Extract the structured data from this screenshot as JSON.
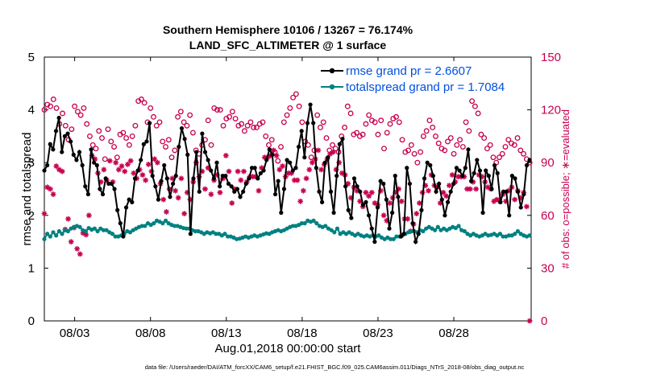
{
  "chart_data": {
    "type": "line",
    "title": "Southern Hemisphere 10106 / 13267 = 76.174%",
    "subtitle": "LAND_SFC_ALTIMETER @ 1 surface",
    "xlabel": "Aug.01,2018 00:00:00 start",
    "ylabel": "rmse and totalspread",
    "y2label": "# of obs: o=possible; ∗=evaluated",
    "footnote": "data file: /Users/raeder/DAI/ATM_forcXX/CAM6_setup/f.e21.FHIST_BGC.f09_025.CAM6assim.011/Diags_NTrS_2018-08/obs_diag_output.nc",
    "xlim": [
      1,
      33.1
    ],
    "ylim": [
      0,
      5
    ],
    "y2lim": [
      0,
      150
    ],
    "xticks": [
      3,
      8,
      13,
      18,
      23,
      28
    ],
    "xtick_labels": [
      "08/03",
      "08/08",
      "08/13",
      "08/18",
      "08/23",
      "08/28"
    ],
    "yticks": [
      0,
      1,
      2,
      3,
      4,
      5
    ],
    "y2ticks": [
      0,
      30,
      60,
      90,
      120,
      150
    ],
    "grid": false,
    "legend_position": "top-right",
    "series": [
      {
        "name": "rmse",
        "legend": "rmse grand pr = 2.6607",
        "color": "#000000",
        "axis": "left",
        "y": [
          2.85,
          2.95,
          3.35,
          3.25,
          3.6,
          3.85,
          3.2,
          3.5,
          3.55,
          3.4,
          3.15,
          3.05,
          3.2,
          2.95,
          2.55,
          2.4,
          3.25,
          3.0,
          2.95,
          2.5,
          2.4,
          2.7,
          2.6,
          2.6,
          2.5,
          2.1,
          1.85,
          1.6,
          2.15,
          2.3,
          2.25,
          2.7,
          2.85,
          3.05,
          3.35,
          3.4,
          3.75,
          2.75,
          2.55,
          2.3,
          2.65,
          2.95,
          2.7,
          2.35,
          2.6,
          2.75,
          3.3,
          3.65,
          3.45,
          3.15,
          1.65,
          2.7,
          3.2,
          2.45,
          3.55,
          3.2,
          3.05,
          2.85,
          2.7,
          3.0,
          2.55,
          2.75,
          2.75,
          2.6,
          2.55,
          2.45,
          2.5,
          2.35,
          2.45,
          2.6,
          2.7,
          2.9,
          2.9,
          2.7,
          2.8,
          2.85,
          3.05,
          3.25,
          3.15,
          2.4,
          2.65,
          2.05,
          2.5,
          3.05,
          3.0,
          2.85,
          2.9,
          3.3,
          3.6,
          3.1,
          3.75,
          4.1,
          3.75,
          2.9,
          2.45,
          2.25,
          3.0,
          3.1,
          2.45,
          2.05,
          2.75,
          3.35,
          3.45,
          2.55,
          2.1,
          1.95,
          2.7,
          2.55,
          2.45,
          2.2,
          2.25,
          2.0,
          1.75,
          1.5,
          2.15,
          2.65,
          2.6,
          2.3,
          1.75,
          2.05,
          2.75,
          2.35,
          1.6,
          1.65,
          2.9,
          2.6,
          1.85,
          1.5,
          1.65,
          2.1,
          2.7,
          3.0,
          2.95,
          2.75,
          2.45,
          2.6,
          2.3,
          2.0,
          2.25,
          2.45,
          2.6,
          2.9,
          2.85,
          2.75,
          2.9,
          3.25,
          2.65,
          2.8,
          3.05,
          2.85,
          2.05,
          2.85,
          2.75,
          2.5,
          2.95,
          2.8,
          2.25,
          2.45,
          2.45,
          2.0,
          2.75,
          2.7,
          2.45,
          2.15,
          2.4,
          2.95,
          3.05
        ],
        "marker": "filled-circle"
      },
      {
        "name": "totalspread",
        "legend": "totalspread grand pr = 1.7084",
        "color": "#008080",
        "axis": "left",
        "y": [
          1.55,
          1.65,
          1.6,
          1.68,
          1.62,
          1.7,
          1.65,
          1.72,
          1.7,
          1.75,
          1.78,
          1.8,
          1.78,
          1.72,
          1.7,
          1.76,
          1.73,
          1.75,
          1.7,
          1.75,
          1.72,
          1.72,
          1.68,
          1.65,
          1.6,
          1.6,
          1.62,
          1.65,
          1.7,
          1.68,
          1.72,
          1.75,
          1.78,
          1.8,
          1.8,
          1.85,
          1.82,
          1.85,
          1.9,
          1.88,
          1.85,
          1.9,
          1.85,
          1.82,
          1.8,
          1.8,
          1.78,
          1.76,
          1.75,
          1.75,
          1.72,
          1.7,
          1.7,
          1.68,
          1.65,
          1.68,
          1.66,
          1.68,
          1.65,
          1.65,
          1.62,
          1.65,
          1.6,
          1.6,
          1.58,
          1.55,
          1.56,
          1.58,
          1.6,
          1.58,
          1.6,
          1.62,
          1.6,
          1.62,
          1.64,
          1.66,
          1.65,
          1.68,
          1.7,
          1.72,
          1.7,
          1.72,
          1.75,
          1.78,
          1.8,
          1.8,
          1.82,
          1.85,
          1.85,
          1.9,
          1.88,
          1.9,
          1.85,
          1.8,
          1.78,
          1.8,
          1.75,
          1.72,
          1.68,
          1.75,
          1.65,
          1.68,
          1.65,
          1.68,
          1.65,
          1.62,
          1.65,
          1.62,
          1.6,
          1.62,
          1.6,
          1.62,
          1.6,
          1.62,
          1.58,
          1.55,
          1.58,
          1.55,
          1.55,
          1.6,
          1.6,
          1.62,
          1.65,
          1.68,
          1.7,
          1.7,
          1.68,
          1.72,
          1.7,
          1.75,
          1.78,
          1.75,
          1.72,
          1.78,
          1.72,
          1.75,
          1.72,
          1.75,
          1.78,
          1.76,
          1.8,
          1.72,
          1.7,
          1.65,
          1.62,
          1.65,
          1.62,
          1.6,
          1.62,
          1.65,
          1.62,
          1.63,
          1.65,
          1.62,
          1.65,
          1.6,
          1.6,
          1.62,
          1.62,
          1.65,
          1.7,
          1.65,
          1.62,
          1.6,
          1.62
        ],
        "marker": "filled-circle"
      },
      {
        "name": "obs possible",
        "color": "#c8004f",
        "axis": "right",
        "marker": "open-circle",
        "y": [
          120,
          123,
          122,
          126,
          121,
          112,
          118,
          111,
          103,
          109,
          122,
          119,
          117,
          121,
          112,
          105,
          100,
          98,
          108,
          104,
          92,
          109,
          102,
          99,
          93,
          106,
          107,
          104,
          100,
          105,
          111,
          125,
          126,
          124,
          113,
          121,
          116,
          111,
          113,
          102,
          99,
          103,
          93,
          97,
          116,
          119,
          113,
          111,
          117,
          107,
          97,
          95,
          100,
          103,
          114,
          100,
          121,
          120,
          120,
          111,
          115,
          116,
          119,
          115,
          111,
          112,
          108,
          111,
          113,
          110,
          110,
          112,
          113,
          105,
          100,
          103,
          96,
          91,
          99,
          113,
          117,
          121,
          127,
          129,
          122,
          113,
          102,
          100,
          93,
          97,
          117,
          110,
          113,
          104,
          97,
          100,
          98,
          96,
          105,
          110,
          122,
          118,
          106,
          107,
          105,
          106,
          112,
          117,
          114,
          113,
          106,
          114,
          98,
          107,
          112,
          115,
          116,
          113,
          103,
          96,
          97,
          100,
          95,
          90,
          96,
          105,
          108,
          114,
          110,
          105,
          101,
          98,
          97,
          102,
          104,
          95,
          100,
          103,
          99,
          113,
          108,
          125,
          122,
          118,
          106,
          104,
          98,
          100,
          93,
          90,
          93,
          95,
          99,
          103,
          101,
          100,
          104,
          97,
          95,
          92,
          90
        ]
      },
      {
        "name": "obs evaluated",
        "color": "#c8004f",
        "axis": "right",
        "marker": "star",
        "y": [
          61,
          76,
          75,
          72,
          88,
          86,
          85,
          52,
          58,
          45,
          53,
          41,
          38,
          50,
          49,
          60,
          94,
          92,
          84,
          79,
          86,
          80,
          91,
          79,
          90,
          86,
          88,
          85,
          89,
          91,
          84,
          81,
          86,
          83,
          80,
          89,
          85,
          92,
          90,
          78,
          69,
          62,
          75,
          81,
          74,
          70,
          81,
          61,
          73,
          69,
          79,
          90,
          82,
          85,
          75,
          87,
          72,
          80,
          83,
          73,
          81,
          94,
          85,
          67,
          75,
          85,
          80,
          85,
          79,
          82,
          82,
          82,
          74,
          87,
          93,
          93,
          94,
          97,
          94,
          86,
          88,
          82,
          84,
          84,
          80,
          80,
          68,
          74,
          81,
          86,
          90,
          92,
          97,
          86,
          89,
          92,
          95,
          96,
          86,
          90,
          84,
          83,
          78,
          70,
          76,
          74,
          68,
          65,
          73,
          71,
          73,
          67,
          66,
          74,
          60,
          57,
          67,
          70,
          73,
          75,
          68,
          58,
          58,
          51,
          55,
          61,
          67,
          73,
          77,
          74,
          83,
          77,
          76,
          67,
          73,
          71,
          77,
          83,
          79,
          82,
          82,
          82,
          75,
          75,
          79,
          75,
          83,
          82,
          79,
          76,
          75,
          68,
          69,
          68,
          72,
          68,
          74,
          76,
          69,
          74,
          70,
          73,
          65,
          0
        ]
      }
    ]
  }
}
